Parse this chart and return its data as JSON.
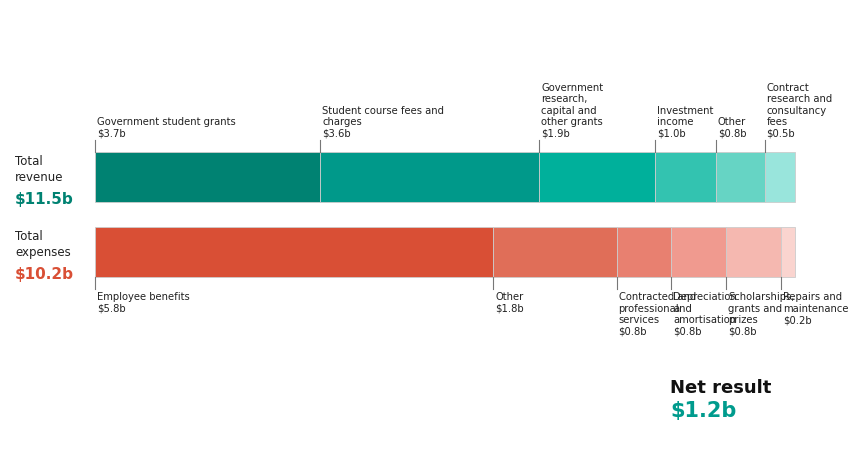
{
  "revenue_segments": [
    {
      "label": "Government student grants\n$3.7b",
      "value": 3.7,
      "color": "#008272"
    },
    {
      "label": "Student course fees and\ncharges\n$3.6b",
      "value": 3.6,
      "color": "#00998A"
    },
    {
      "label": "Government\nresearch,\ncapital and\nother grants\n$1.9b",
      "value": 1.9,
      "color": "#00B09B"
    },
    {
      "label": "Investment\nincome\n$1.0b",
      "value": 1.0,
      "color": "#33C3B0"
    },
    {
      "label": "Other\n$0.8b",
      "value": 0.8,
      "color": "#66D4C4"
    },
    {
      "label": "Contract\nresearch and\nconsultancy\nfees\n$0.5b",
      "value": 0.5,
      "color": "#99E5DC"
    }
  ],
  "expense_segments": [
    {
      "label": "Employee benefits\n$5.8b",
      "value": 5.8,
      "color": "#D94F35"
    },
    {
      "label": "Other\n$1.8b",
      "value": 1.8,
      "color": "#E06E58"
    },
    {
      "label": "Contracted and\nprofessional\nservices\n$0.8b",
      "value": 0.8,
      "color": "#E88070"
    },
    {
      "label": "Depreciation\nand\namortisation\n$0.8b",
      "value": 0.8,
      "color": "#F09A8F"
    },
    {
      "label": "Scholarships,\ngrants and\nprizes\n$0.8b",
      "value": 0.8,
      "color": "#F5B8B0"
    },
    {
      "label": "Repairs and\nmaintenance\n$0.2b",
      "value": 0.2,
      "color": "#FAD4CF"
    }
  ],
  "total_revenue": 11.5,
  "total_expenses": 10.2,
  "net_result": 1.2,
  "revenue_label": "Total\nrevenue",
  "revenue_value_label": "$11.5b",
  "expense_label": "Total\nexpenses",
  "expense_value_label": "$10.2b",
  "net_result_label": "Net result",
  "net_result_value_label": "$1.2b",
  "teal_color": "#008272",
  "red_color": "#D94F35",
  "net_color": "#009B8D",
  "background_color": "#ffffff"
}
